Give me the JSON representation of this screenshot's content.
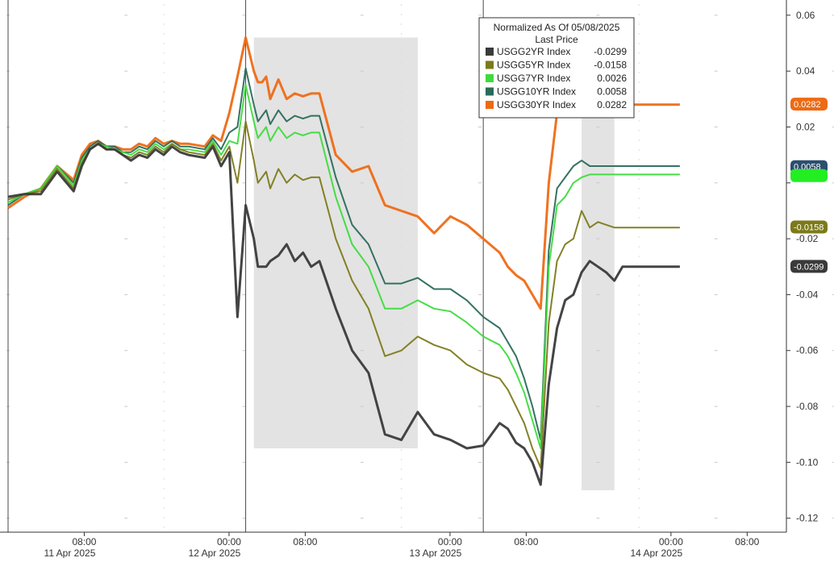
{
  "chart_data": {
    "type": "line",
    "legend": {
      "title": "Normalized As Of 05/08/2025",
      "subtitle": "Last Price",
      "placement": "top-right",
      "entries": [
        {
          "name": "USGG2YR Index",
          "value": "-0.0299",
          "color": "#3a3a3a"
        },
        {
          "name": "USGG5YR Index",
          "value": "-0.0158",
          "color": "#7c7a1a"
        },
        {
          "name": "USGG7YR Index",
          "value": "0.0026",
          "color": "#3ddb3d"
        },
        {
          "name": "USGG10YR Index",
          "value": "0.0058",
          "color": "#2a6a5a"
        },
        {
          "name": "USGG30YR Index",
          "value": "0.0282",
          "color": "#ee6a14"
        }
      ]
    },
    "end_labels": [
      {
        "text": "0.0282",
        "value": 0.0282,
        "bg": "#ee6a14",
        "fg": "#ffffff"
      },
      {
        "text": "0.0058",
        "value": 0.0058,
        "bg": "#2c4f6e",
        "fg": "#ffffff"
      },
      {
        "text": "0.0026",
        "value": 0.0026,
        "bg": "#22ee22",
        "fg": "#22ee22"
      },
      {
        "text": "-0.0158",
        "value": -0.0158,
        "bg": "#7c7a1a",
        "fg": "#ffffff"
      },
      {
        "text": "-0.0299",
        "value": -0.0299,
        "bg": "#3a3a3a",
        "fg": "#ffffff"
      }
    ],
    "ylim": [
      -0.125,
      0.064
    ],
    "y_ticks": [
      0.06,
      0.04,
      0.02,
      0.0,
      -0.02,
      -0.04,
      -0.06,
      -0.08,
      -0.1,
      -0.12
    ],
    "y_tick_labels": [
      "0.06",
      "0.04",
      "0.02",
      "",
      "-0.02",
      "-0.04",
      "-0.06",
      "-0.08",
      "-0.10",
      "-0.12"
    ],
    "x_tick_labels": [
      {
        "time": "08:00",
        "date": "11 Apr 2025"
      },
      {
        "time": "00:00",
        "date": "12 Apr 2025"
      },
      {
        "time": "08:00",
        "date": ""
      },
      {
        "time": "00:00",
        "date": "13 Apr 2025"
      },
      {
        "time": "08:00",
        "date": ""
      },
      {
        "time": "00:00",
        "date": "14 Apr 2025"
      },
      {
        "time": "08:00",
        "date": ""
      }
    ],
    "x": [
      0,
      2,
      4,
      6,
      8,
      9,
      10,
      11,
      12,
      13,
      14,
      15,
      16,
      17,
      18,
      19,
      20,
      21,
      22,
      24,
      25,
      26,
      27,
      28,
      29,
      30,
      30.5,
      31,
      31.5,
      32,
      33,
      34,
      35,
      36,
      37,
      38,
      40,
      42,
      44,
      46,
      48,
      50,
      52,
      54,
      56,
      58,
      60,
      61,
      62,
      63,
      64,
      65,
      66,
      67,
      68,
      69,
      70,
      71,
      72,
      73,
      74,
      75,
      76,
      77,
      78,
      79,
      80,
      81,
      82
    ],
    "series": [
      {
        "name": "USGG2YR Index",
        "color": "#3a3a3a",
        "values": [
          -0.005,
          -0.004,
          -0.004,
          0.004,
          -0.003,
          0.006,
          0.012,
          0.014,
          0.012,
          0.012,
          0.01,
          0.008,
          0.01,
          0.009,
          0.012,
          0.01,
          0.013,
          0.011,
          0.01,
          0.009,
          0.013,
          0.006,
          0.011,
          -0.048,
          -0.008,
          -0.02,
          -0.03,
          -0.03,
          -0.03,
          -0.028,
          -0.026,
          -0.022,
          -0.028,
          -0.025,
          -0.03,
          -0.028,
          -0.045,
          -0.06,
          -0.068,
          -0.09,
          -0.092,
          -0.082,
          -0.09,
          -0.092,
          -0.095,
          -0.094,
          -0.086,
          -0.088,
          -0.093,
          -0.095,
          -0.1,
          -0.108,
          -0.072,
          -0.052,
          -0.042,
          -0.04,
          -0.032,
          -0.028,
          -0.03,
          -0.032,
          -0.035,
          -0.03,
          -0.03,
          -0.03,
          -0.03,
          -0.03,
          -0.03,
          -0.03,
          -0.03
        ]
      },
      {
        "name": "USGG5YR Index",
        "color": "#7c7a1a",
        "values": [
          -0.006,
          -0.004,
          -0.003,
          0.005,
          -0.002,
          0.007,
          0.012,
          0.014,
          0.012,
          0.012,
          0.01,
          0.009,
          0.011,
          0.01,
          0.013,
          0.011,
          0.014,
          0.012,
          0.011,
          0.01,
          0.014,
          0.008,
          0.013,
          0.0,
          0.022,
          0.008,
          0.0,
          0.002,
          0.004,
          -0.002,
          0.005,
          0.0,
          0.003,
          0.001,
          0.002,
          0.002,
          -0.02,
          -0.035,
          -0.045,
          -0.062,
          -0.06,
          -0.055,
          -0.058,
          -0.06,
          -0.065,
          -0.068,
          -0.07,
          -0.074,
          -0.08,
          -0.086,
          -0.095,
          -0.102,
          -0.05,
          -0.028,
          -0.022,
          -0.02,
          -0.01,
          -0.016,
          -0.014,
          -0.015,
          -0.016,
          -0.016,
          -0.016,
          -0.016,
          -0.016,
          -0.016,
          -0.016,
          -0.016,
          -0.016
        ]
      },
      {
        "name": "USGG7YR Index",
        "color": "#3ddb3d",
        "values": [
          -0.007,
          -0.004,
          -0.002,
          0.006,
          -0.001,
          0.008,
          0.012,
          0.014,
          0.013,
          0.012,
          0.011,
          0.01,
          0.012,
          0.011,
          0.014,
          0.012,
          0.014,
          0.012,
          0.012,
          0.011,
          0.015,
          0.01,
          0.015,
          0.014,
          0.035,
          0.022,
          0.016,
          0.018,
          0.02,
          0.015,
          0.02,
          0.016,
          0.018,
          0.017,
          0.018,
          0.018,
          -0.005,
          -0.022,
          -0.03,
          -0.045,
          -0.045,
          -0.042,
          -0.045,
          -0.046,
          -0.05,
          -0.055,
          -0.058,
          -0.062,
          -0.068,
          -0.075,
          -0.085,
          -0.095,
          -0.03,
          -0.008,
          -0.005,
          0.0,
          0.002,
          0.003,
          0.003,
          0.003,
          0.003,
          0.003,
          0.003,
          0.003,
          0.003,
          0.003,
          0.003,
          0.003,
          0.003
        ]
      },
      {
        "name": "USGG10YR Index",
        "color": "#2a6a5a",
        "values": [
          -0.008,
          -0.004,
          -0.002,
          0.006,
          0.0,
          0.009,
          0.013,
          0.015,
          0.013,
          0.013,
          0.011,
          0.011,
          0.013,
          0.012,
          0.015,
          0.013,
          0.015,
          0.013,
          0.013,
          0.012,
          0.016,
          0.012,
          0.018,
          0.02,
          0.041,
          0.028,
          0.022,
          0.024,
          0.026,
          0.021,
          0.026,
          0.022,
          0.024,
          0.023,
          0.024,
          0.024,
          0.002,
          -0.015,
          -0.022,
          -0.036,
          -0.036,
          -0.034,
          -0.038,
          -0.038,
          -0.042,
          -0.048,
          -0.052,
          -0.057,
          -0.062,
          -0.07,
          -0.08,
          -0.092,
          -0.024,
          -0.002,
          0.002,
          0.006,
          0.008,
          0.006,
          0.006,
          0.006,
          0.006,
          0.006,
          0.006,
          0.006,
          0.006,
          0.006,
          0.006,
          0.006,
          0.006
        ]
      },
      {
        "name": "USGG30YR Index",
        "color": "#ee6a14",
        "values": [
          -0.009,
          -0.005,
          -0.002,
          0.006,
          0.001,
          0.01,
          0.014,
          0.015,
          0.013,
          0.013,
          0.012,
          0.012,
          0.014,
          0.013,
          0.016,
          0.014,
          0.015,
          0.014,
          0.014,
          0.013,
          0.017,
          0.015,
          0.025,
          0.038,
          0.052,
          0.04,
          0.036,
          0.036,
          0.038,
          0.03,
          0.037,
          0.03,
          0.032,
          0.031,
          0.032,
          0.032,
          0.01,
          0.004,
          0.006,
          -0.008,
          -0.01,
          -0.012,
          -0.018,
          -0.012,
          -0.015,
          -0.02,
          -0.025,
          -0.03,
          -0.033,
          -0.035,
          -0.04,
          -0.045,
          0.0,
          0.025,
          0.03,
          0.032,
          0.026,
          0.028,
          0.028,
          0.028,
          0.028,
          0.028,
          0.028,
          0.028,
          0.028,
          0.028,
          0.028,
          0.028,
          0.028
        ]
      }
    ],
    "grid": false,
    "shaded_regions": [
      [
        30,
        50
      ],
      [
        70,
        74
      ]
    ]
  }
}
